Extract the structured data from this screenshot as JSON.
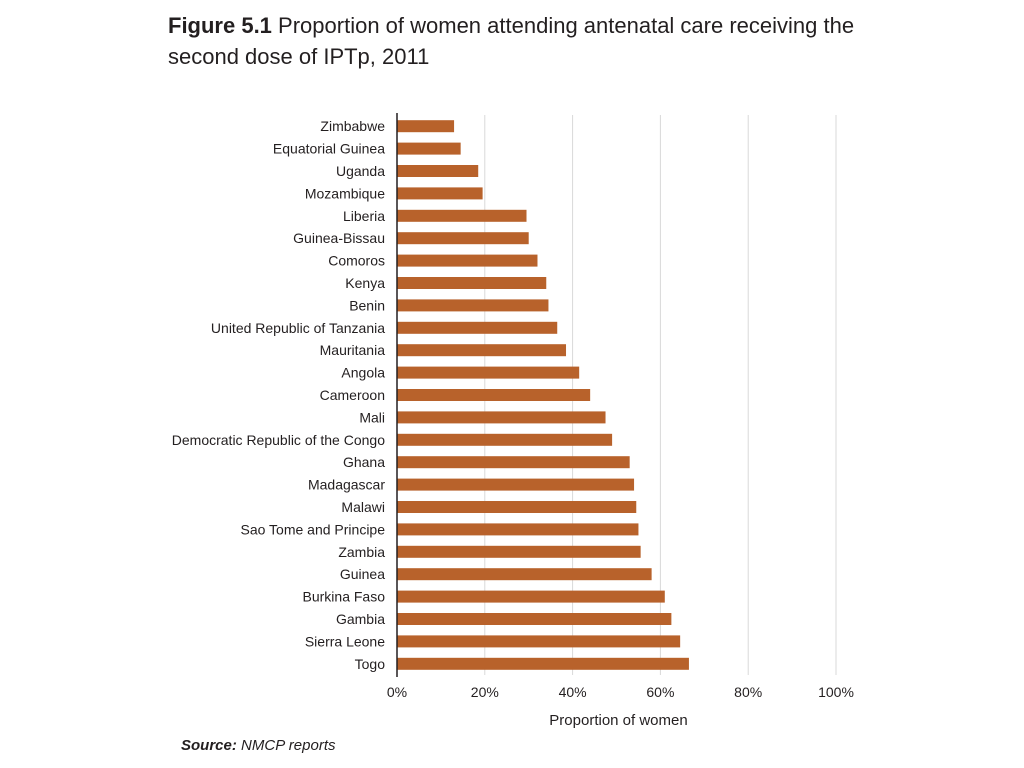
{
  "title": {
    "figure_label": "Figure 5.1",
    "text": "Proportion of women attending antenatal care receiving the second dose of IPTp, 2011"
  },
  "source": {
    "label": "Source:",
    "text": "NMCP reports"
  },
  "colors": {
    "bar": "#b8622b",
    "grid": "#d9d9d9",
    "axis": "#231f20",
    "text": "#231f20"
  },
  "chart_data": {
    "type": "bar",
    "orientation": "horizontal",
    "categories": [
      "Zimbabwe",
      "Equatorial Guinea",
      "Uganda",
      "Mozambique",
      "Liberia",
      "Guinea-Bissau",
      "Comoros",
      "Kenya",
      "Benin",
      "United Republic of Tanzania",
      "Mauritania",
      "Angola",
      "Cameroon",
      "Mali",
      "Democratic Republic of the Congo",
      "Ghana",
      "Madagascar",
      "Malawi",
      "Sao Tome and Principe",
      "Zambia",
      "Guinea",
      "Burkina Faso",
      "Gambia",
      "Sierra Leone",
      "Togo"
    ],
    "values": [
      0.13,
      0.145,
      0.185,
      0.195,
      0.295,
      0.3,
      0.32,
      0.34,
      0.345,
      0.365,
      0.385,
      0.415,
      0.44,
      0.475,
      0.49,
      0.53,
      0.54,
      0.545,
      0.55,
      0.555,
      0.58,
      0.61,
      0.625,
      0.645,
      0.665
    ],
    "xlim": [
      0,
      1
    ],
    "xticks": [
      0,
      0.2,
      0.4,
      0.6,
      0.8,
      1.0
    ],
    "xtick_labels": [
      "0%",
      "20%",
      "40%",
      "60%",
      "80%",
      "100%"
    ],
    "xlabel": "Proportion of women",
    "ylabel": "",
    "grid": true,
    "legend": false
  }
}
